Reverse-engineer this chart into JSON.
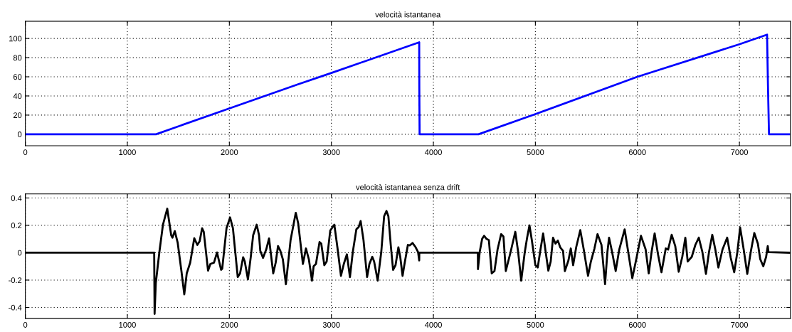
{
  "chart_data": [
    {
      "type": "line",
      "title": "velocità istantanea",
      "xlim": [
        0,
        7500
      ],
      "ylim": [
        -12,
        118
      ],
      "xticks": [
        0,
        1000,
        2000,
        3000,
        4000,
        5000,
        6000,
        7000
      ],
      "yticks": [
        0,
        20,
        40,
        60,
        80,
        100
      ],
      "grid": true,
      "series": [
        {
          "color": "#0000ff",
          "x": [
            0,
            1281,
            2000,
            2670,
            3000,
            3861,
            3862,
            3865,
            4442,
            5000,
            6000,
            7000,
            7271,
            7280,
            7290,
            7500
          ],
          "values": [
            0,
            0,
            27,
            52,
            64,
            96,
            49,
            0,
            0,
            21,
            60,
            94,
            104,
            51,
            0,
            0
          ]
        }
      ]
    },
    {
      "type": "line",
      "title": "velocità istantanea senza drift",
      "xlim": [
        0,
        7500
      ],
      "ylim": [
        -0.48,
        0.43
      ],
      "xticks": [
        0,
        1000,
        2000,
        3000,
        4000,
        5000,
        6000,
        7000
      ],
      "yticks": [
        -0.4,
        -0.2,
        0,
        0.2,
        0.4
      ],
      "grid": true,
      "series": [
        {
          "color": "#000000",
          "x": [
            0,
            1263,
            1267,
            1279,
            1314,
            1349,
            1391,
            1430,
            1442,
            1465,
            1493,
            1530,
            1558,
            1582,
            1616,
            1656,
            1686,
            1709,
            1733,
            1749,
            1791,
            1814,
            1849,
            1879,
            1919,
            1930,
            1972,
            2007,
            2035,
            2058,
            2082,
            2105,
            2135,
            2151,
            2182,
            2210,
            2233,
            2268,
            2291,
            2303,
            2330,
            2361,
            2389,
            2430,
            2454,
            2477,
            2500,
            2524,
            2554,
            2600,
            2651,
            2675,
            2721,
            2751,
            2779,
            2810,
            2826,
            2849,
            2884,
            2901,
            2931,
            2954,
            2989,
            3029,
            3059,
            3094,
            3122,
            3152,
            3182,
            3210,
            3245,
            3268,
            3287,
            3315,
            3350,
            3373,
            3401,
            3419,
            3454,
            3489,
            3517,
            3540,
            3559,
            3582,
            3605,
            3629,
            3657,
            3675,
            3698,
            3717,
            3750,
            3768,
            3796,
            3826,
            3850,
            3861,
            3862,
            4436,
            4437,
            4454,
            4478,
            4497,
            4521,
            4544,
            4572,
            4599,
            4629,
            4664,
            4687,
            4710,
            4757,
            4803,
            4831,
            4861,
            4896,
            4919,
            4942,
            4965,
            5000,
            5023,
            5046,
            5076,
            5104,
            5127,
            5150,
            5173,
            5197,
            5220,
            5243,
            5271,
            5289,
            5324,
            5347,
            5370,
            5400,
            5440,
            5474,
            5516,
            5544,
            5579,
            5609,
            5648,
            5683,
            5706,
            5722,
            5752,
            5787,
            5822,
            5875,
            5910,
            5950,
            5989,
            6035,
            6081,
            6111,
            6139,
            6169,
            6202,
            6236,
            6278,
            6301,
            6336,
            6371,
            6405,
            6440,
            6470,
            6493,
            6533,
            6568,
            6602,
            6637,
            6672,
            6702,
            6734,
            6764,
            6794,
            6834,
            6880,
            6915,
            6949,
            6980,
            7007,
            7042,
            7077,
            7111,
            7146,
            7181,
            7204,
            7234,
            7262,
            7278,
            7285,
            7500
          ],
          "values": [
            0,
            0,
            -0.447,
            -0.221,
            0.005,
            0.205,
            0.322,
            0.127,
            0.11,
            0.158,
            0.075,
            -0.134,
            -0.305,
            -0.151,
            -0.073,
            0.106,
            0.057,
            0.084,
            0.179,
            0.153,
            -0.131,
            -0.082,
            -0.073,
            0.002,
            -0.125,
            -0.117,
            0.179,
            0.258,
            0.179,
            0.005,
            -0.178,
            -0.151,
            -0.033,
            -0.064,
            -0.195,
            -0.03,
            0.127,
            0.205,
            0.127,
            0.014,
            -0.038,
            0.023,
            0.104,
            -0.151,
            -0.073,
            0.049,
            0.014,
            -0.047,
            -0.23,
            0.092,
            0.292,
            0.214,
            -0.082,
            0.031,
            -0.047,
            -0.204,
            -0.099,
            -0.082,
            0.078,
            0.066,
            -0.091,
            -0.064,
            0.162,
            0.205,
            0.04,
            -0.169,
            -0.082,
            -0.012,
            -0.178,
            0.005,
            0.171,
            0.188,
            0.232,
            0.092,
            -0.178,
            -0.082,
            -0.03,
            -0.064,
            -0.204,
            0.005,
            0.266,
            0.305,
            0.266,
            0.057,
            -0.125,
            -0.091,
            0.04,
            -0.03,
            -0.169,
            -0.082,
            0.057,
            0.054,
            0.071,
            0.04,
            0.005,
            -0.056,
            0,
            0,
            -0.12,
            0.005,
            0.101,
            0.124,
            0.101,
            0.092,
            -0.151,
            -0.134,
            0.023,
            0.136,
            0.118,
            -0.134,
            0.005,
            0.153,
            0.005,
            -0.204,
            0.005,
            0.11,
            0.2,
            0.092,
            -0.091,
            -0.108,
            0.005,
            0.141,
            -0.012,
            -0.131,
            -0.064,
            0.11,
            0.066,
            0.089,
            0.04,
            0.014,
            -0.134,
            -0.056,
            0.031,
            -0.091,
            0.04,
            0.165,
            0.023,
            -0.169,
            -0.064,
            0.031,
            0.136,
            0.057,
            -0.23,
            0.005,
            0.11,
            0.005,
            -0.134,
            0.023,
            0.171,
            0.005,
            -0.186,
            -0.047,
            0.124,
            0.023,
            -0.151,
            0.005,
            0.141,
            -0.012,
            -0.143,
            0.031,
            0.023,
            0.131,
            0.049,
            -0.139,
            -0.03,
            0.11,
            -0.064,
            -0.03,
            0.057,
            0.11,
            0.005,
            -0.155,
            0.005,
            0.131,
            0.023,
            -0.108,
            0.023,
            0.11,
            -0.038,
            -0.143,
            0.005,
            0.185,
            0.023,
            -0.155,
            0.005,
            0.144,
            0.066,
            -0.047,
            -0.099,
            -0.03,
            0.049,
            0.005,
            0
          ]
        }
      ]
    }
  ]
}
